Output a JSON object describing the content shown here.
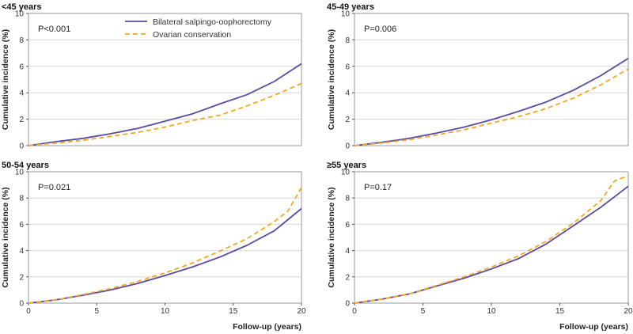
{
  "colors": {
    "bso": "#5a4aa6",
    "conservation": "#f4a81d",
    "grid": "#d8d8d8"
  },
  "legend": {
    "items": [
      {
        "name": "Bilateral salpingo-oophorectomy",
        "color": "#5a4aa6",
        "style": "solid"
      },
      {
        "name": "Ovarian conservation",
        "color": "#f4a81d",
        "style": "dashed"
      }
    ]
  },
  "chart_data": [
    {
      "type": "line",
      "title": "<45 years",
      "annotation": "P<0.001",
      "xlabel": "",
      "ylabel": "Cumulative incidence (%)",
      "xlim": [
        0,
        20
      ],
      "ylim": [
        0,
        10
      ],
      "xticks": [],
      "yticks": [
        0,
        2,
        4,
        6,
        8,
        10
      ],
      "grid": true,
      "series": [
        {
          "name": "Bilateral salpingo-oophorectomy",
          "x": [
            0,
            2,
            4,
            6,
            8,
            10,
            12,
            14,
            16,
            18,
            20
          ],
          "values": [
            0,
            0.3,
            0.55,
            0.9,
            1.3,
            1.85,
            2.4,
            3.15,
            3.85,
            4.85,
            6.2
          ]
        },
        {
          "name": "Ovarian conservation",
          "x": [
            0,
            2,
            4,
            6,
            8,
            10,
            12,
            14,
            16,
            18,
            20
          ],
          "values": [
            0,
            0.2,
            0.4,
            0.7,
            1.0,
            1.4,
            1.9,
            2.3,
            3.0,
            3.8,
            4.7
          ]
        }
      ]
    },
    {
      "type": "line",
      "title": "45-49 years",
      "annotation": "P=0.006",
      "xlabel": "",
      "ylabel": "Cumulative incidence (%)",
      "xlim": [
        0,
        20
      ],
      "ylim": [
        0,
        10
      ],
      "xticks": [],
      "yticks": [
        0,
        2,
        4,
        6,
        8,
        10
      ],
      "grid": true,
      "series": [
        {
          "name": "Bilateral salpingo-oophorectomy",
          "x": [
            0,
            2,
            4,
            6,
            8,
            10,
            12,
            14,
            16,
            18,
            20
          ],
          "values": [
            0,
            0.25,
            0.55,
            0.95,
            1.4,
            1.95,
            2.6,
            3.3,
            4.2,
            5.3,
            6.6
          ]
        },
        {
          "name": "Ovarian conservation",
          "x": [
            0,
            2,
            4,
            6,
            8,
            10,
            12,
            14,
            16,
            18,
            20
          ],
          "values": [
            0,
            0.2,
            0.45,
            0.8,
            1.2,
            1.7,
            2.2,
            2.8,
            3.6,
            4.6,
            5.8
          ]
        }
      ]
    },
    {
      "type": "line",
      "title": "50-54 years",
      "annotation": "P=0.021",
      "xlabel": "Follow-up (years)",
      "ylabel": "Cumulative incidence (%)",
      "xlim": [
        0,
        20
      ],
      "ylim": [
        0,
        10
      ],
      "xticks": [
        0,
        5,
        10,
        15,
        20
      ],
      "yticks": [
        0,
        2,
        4,
        6,
        8,
        10
      ],
      "grid": true,
      "series": [
        {
          "name": "Bilateral salpingo-oophorectomy",
          "x": [
            0,
            2,
            4,
            6,
            8,
            10,
            12,
            14,
            16,
            18,
            20
          ],
          "values": [
            0,
            0.25,
            0.6,
            1.0,
            1.5,
            2.1,
            2.75,
            3.5,
            4.4,
            5.5,
            7.2
          ]
        },
        {
          "name": "Ovarian conservation",
          "x": [
            0,
            2,
            4,
            6,
            8,
            10,
            12,
            14,
            16,
            18,
            19,
            20
          ],
          "values": [
            0,
            0.25,
            0.65,
            1.1,
            1.65,
            2.3,
            3.05,
            3.95,
            4.9,
            6.2,
            7.0,
            8.8
          ]
        }
      ]
    },
    {
      "type": "line",
      "title": "≥55 years",
      "annotation": "P=0.17",
      "xlabel": "Follow-up (years)",
      "ylabel": "Cumulative incidence (%)",
      "xlim": [
        0,
        20
      ],
      "ylim": [
        0,
        10
      ],
      "xticks": [
        0,
        5,
        10,
        15,
        20
      ],
      "yticks": [
        0,
        2,
        4,
        6,
        8,
        10
      ],
      "grid": true,
      "series": [
        {
          "name": "Bilateral salpingo-oophorectomy",
          "x": [
            0,
            2,
            4,
            6,
            8,
            10,
            12,
            14,
            16,
            18,
            20
          ],
          "values": [
            0,
            0.3,
            0.7,
            1.3,
            1.9,
            2.6,
            3.4,
            4.5,
            5.9,
            7.3,
            8.9
          ]
        },
        {
          "name": "Ovarian conservation",
          "x": [
            0,
            2,
            4,
            6,
            8,
            10,
            12,
            14,
            16,
            18,
            19,
            20
          ],
          "values": [
            0,
            0.3,
            0.7,
            1.35,
            2.0,
            2.75,
            3.6,
            4.7,
            6.1,
            7.8,
            9.3,
            9.7
          ]
        }
      ]
    }
  ]
}
